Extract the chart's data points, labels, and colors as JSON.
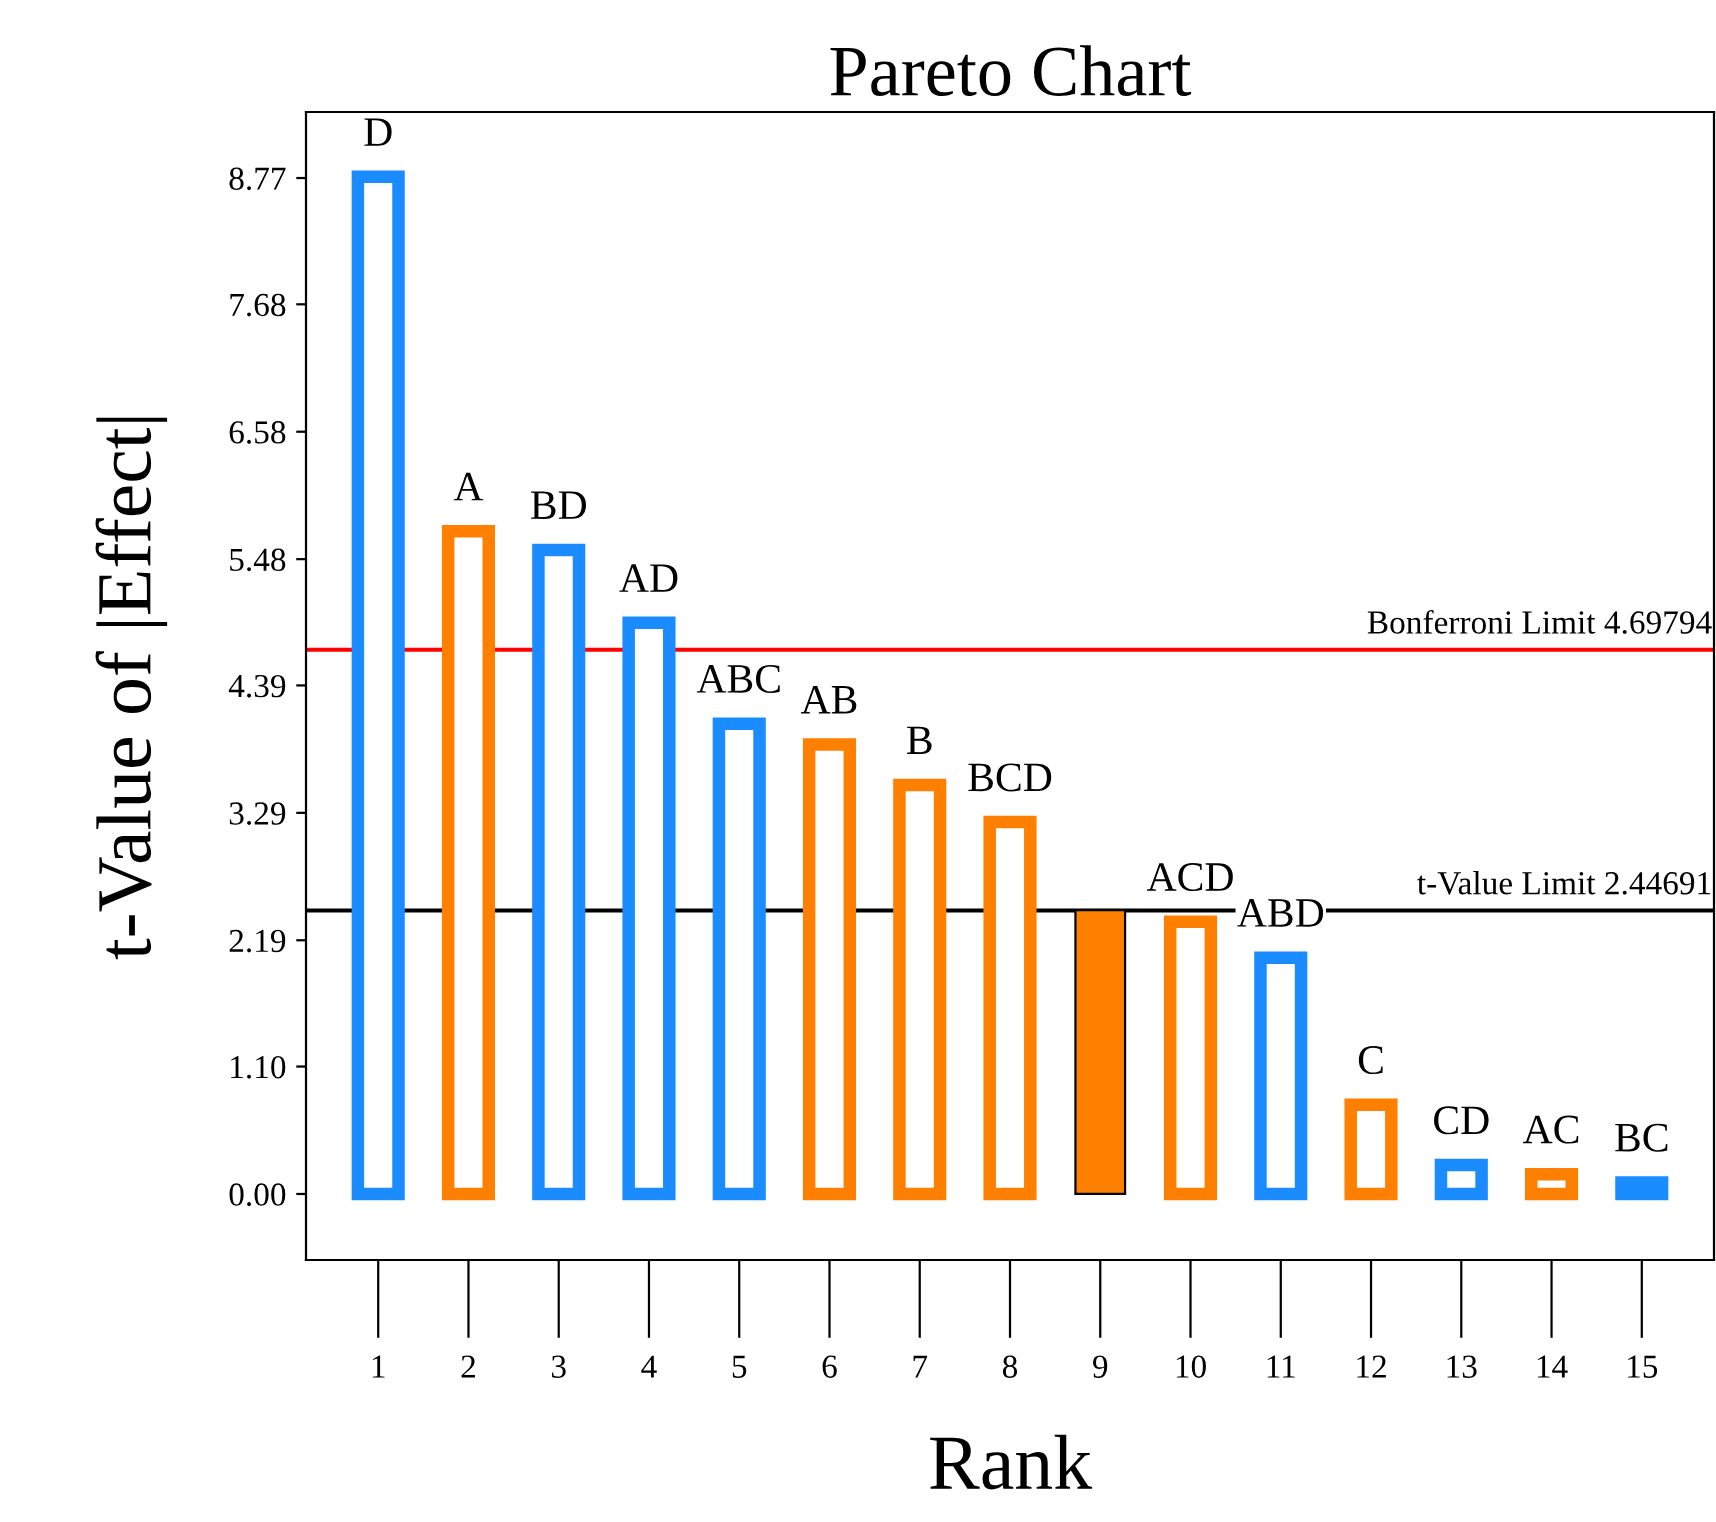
{
  "chart_data": {
    "type": "bar",
    "title": "Pareto Chart",
    "xlabel": "Rank",
    "ylabel": "t-Value of |Effect|",
    "categories": [
      "1",
      "2",
      "3",
      "4",
      "5",
      "6",
      "7",
      "8",
      "9",
      "10",
      "11",
      "12",
      "13",
      "14",
      "15"
    ],
    "series": [
      {
        "colors": [
          "#1a8cff",
          "#ff8000",
          "#1a8cff",
          "#1a8cff",
          "#1a8cff",
          "#ff8000",
          "#ff8000",
          "#ff8000",
          null,
          "#ff8000",
          "#1a8cff",
          "#ff8000",
          "#1a8cff",
          "#ff8000",
          "#1a8cff"
        ],
        "values": [
          8.78,
          5.72,
          5.56,
          4.93,
          4.06,
          3.88,
          3.53,
          3.21,
          null,
          2.35,
          2.04,
          0.77,
          0.25,
          0.17,
          0.1
        ]
      },
      {
        "color": "#ff8000",
        "values": [
          null,
          null,
          null,
          null,
          null,
          null,
          null,
          null,
          2.45,
          null,
          null,
          null,
          null,
          null,
          null
        ]
      }
    ],
    "ylim": [
      -0.57,
      9.34
    ],
    "yticks": [
      {
        "value": 0,
        "label": "0.00"
      },
      {
        "value": 1.1,
        "label": "1.10"
      },
      {
        "value": 2.19,
        "label": "2.19"
      },
      {
        "value": 3.29,
        "label": "3.29"
      },
      {
        "value": 4.39,
        "label": "4.39"
      },
      {
        "value": 5.48,
        "label": "5.48"
      },
      {
        "value": 6.58,
        "label": "6.58"
      },
      {
        "value": 7.68,
        "label": "7.68"
      },
      {
        "value": 8.77,
        "label": "8.77"
      }
    ],
    "ref_lines": [
      {
        "axis": "y",
        "value": 4.69794,
        "label": "Bonferroni Limit 4.69794",
        "color": "#ff0000"
      },
      {
        "axis": "y",
        "value": 2.44691,
        "label": "t-Value Limit 2.44691",
        "color": "#000000"
      }
    ],
    "annotations": [
      {
        "text": "D",
        "x": "1",
        "y": 8.78
      },
      {
        "text": "A",
        "x": "2",
        "y": 5.72
      },
      {
        "text": "BD",
        "x": "3",
        "y": 5.56
      },
      {
        "text": "AD",
        "x": "4",
        "y": 4.93
      },
      {
        "text": "ABC",
        "x": "5",
        "y": 4.06
      },
      {
        "text": "AB",
        "x": "6",
        "y": 3.88
      },
      {
        "text": "B",
        "x": "7",
        "y": 3.53
      },
      {
        "text": "BCD",
        "x": "8",
        "y": 3.21
      },
      {
        "text": "ACD",
        "x": "10",
        "y": 2.35
      },
      {
        "text": "ABD",
        "x": "11",
        "y": 2.04
      },
      {
        "text": "C",
        "x": "12",
        "y": 0.77
      },
      {
        "text": "CD",
        "x": "13",
        "y": 0.25
      },
      {
        "text": "AC",
        "x": "14",
        "y": 0.17
      },
      {
        "text": "BC",
        "x": "15",
        "y": 0.1
      }
    ],
    "grid": false
  }
}
